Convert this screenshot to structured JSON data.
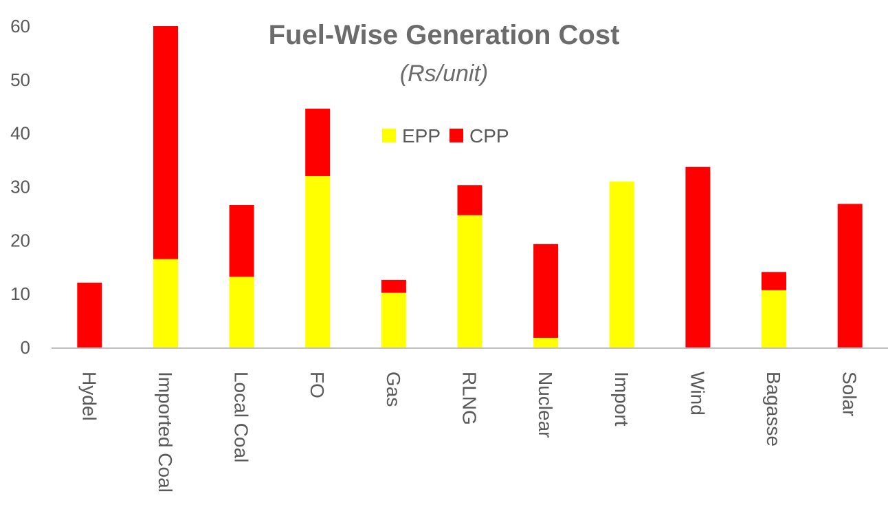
{
  "chart_data": {
    "type": "bar",
    "stacked": true,
    "title": "Fuel-Wise Generation Cost",
    "subtitle": "(Rs/unit)",
    "xlabel": "",
    "ylabel": "",
    "ylim": [
      0,
      60
    ],
    "yticks": [
      0,
      10,
      20,
      30,
      40,
      50,
      60
    ],
    "grid": false,
    "legend_position": "top-center",
    "categories": [
      "Hydel",
      "Imported Coal",
      "Local Coal",
      "FO",
      "Gas",
      "RLNG",
      "Nuclear",
      "Import",
      "Wind",
      "Bagasse",
      "Solar"
    ],
    "series": [
      {
        "name": "EPP",
        "color": "#ffff00",
        "values": [
          0,
          16.5,
          13.2,
          32.0,
          10.2,
          24.7,
          1.8,
          31.0,
          0,
          10.7,
          0
        ]
      },
      {
        "name": "CPP",
        "color": "#ff0000",
        "values": [
          12.1,
          43.5,
          13.4,
          12.6,
          2.4,
          5.6,
          17.5,
          0,
          33.7,
          3.4,
          26.8
        ]
      }
    ]
  }
}
